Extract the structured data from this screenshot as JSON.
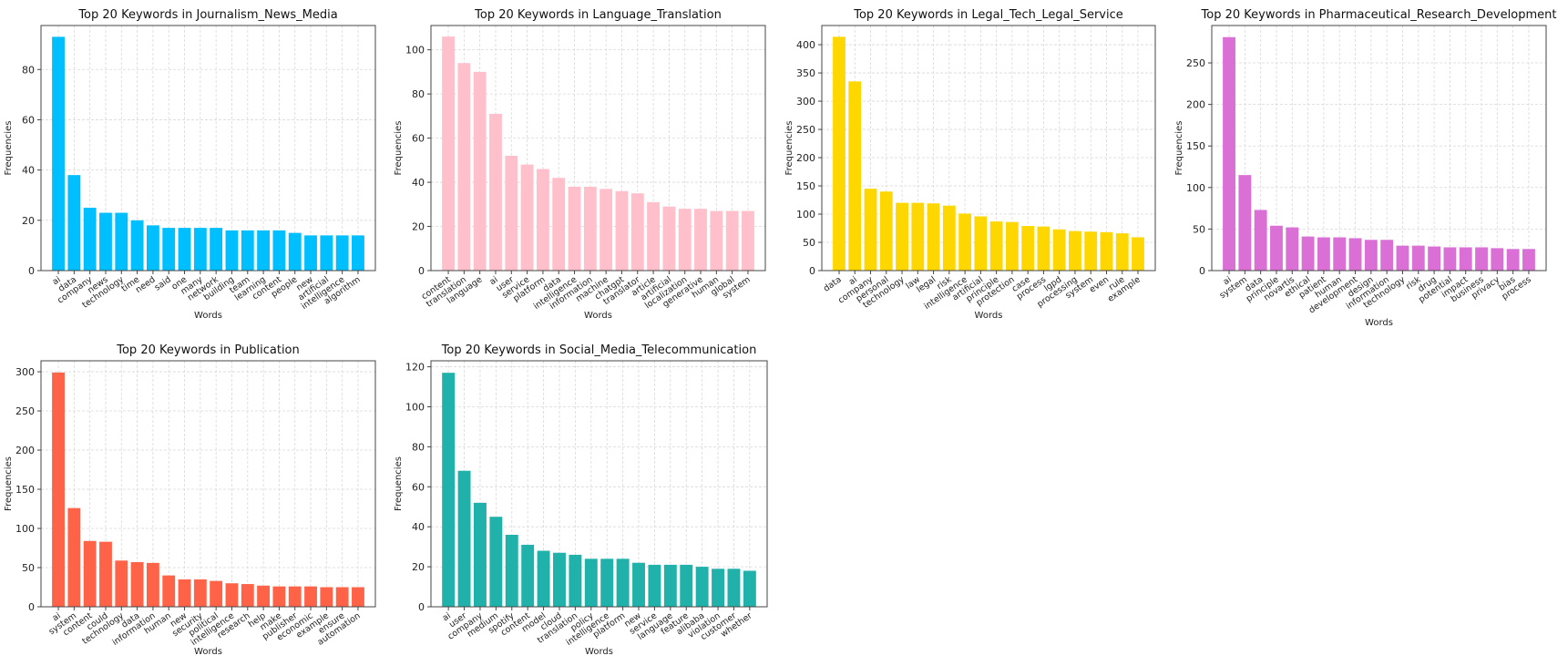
{
  "chart_data": [
    {
      "type": "bar",
      "title": "Top 20 Keywords in Journalism_News_Media",
      "xlabel": "Words",
      "ylabel": "Frequencies",
      "ylim": [
        0,
        97.5
      ],
      "yticks": [
        0,
        20,
        40,
        60,
        80
      ],
      "grid": true,
      "color": "#00bfff",
      "categories": [
        "ai",
        "data",
        "company",
        "news",
        "technology",
        "time",
        "need",
        "said",
        "one",
        "many",
        "network",
        "building",
        "team",
        "learning",
        "content",
        "people",
        "new",
        "artificial",
        "intelligence",
        "algorithm"
      ],
      "values": [
        93,
        38,
        25,
        23,
        23,
        20,
        18,
        17,
        17,
        17,
        17,
        16,
        16,
        16,
        16,
        15,
        14,
        14,
        14,
        14
      ]
    },
    {
      "type": "bar",
      "title": "Top 20 Keywords in Language_Translation",
      "xlabel": "Words",
      "ylabel": "Frequencies",
      "ylim": [
        0,
        111
      ],
      "yticks": [
        0,
        20,
        40,
        60,
        80,
        100
      ],
      "grid": true,
      "color": "#ffc0cb",
      "categories": [
        "content",
        "translation",
        "language",
        "ai",
        "user",
        "service",
        "platform",
        "data",
        "intelligence",
        "information",
        "machine",
        "chatgpt",
        "translator",
        "article",
        "artificial",
        "localization",
        "generative",
        "human",
        "global",
        "system"
      ],
      "values": [
        106,
        94,
        90,
        71,
        52,
        48,
        46,
        42,
        38,
        38,
        37,
        36,
        35,
        31,
        29,
        28,
        28,
        27,
        27,
        27
      ]
    },
    {
      "type": "bar",
      "title": "Top 20 Keywords in Legal_Tech_Legal_Service",
      "xlabel": "Words",
      "ylabel": "Frequencies",
      "ylim": [
        0,
        434
      ],
      "yticks": [
        0,
        50,
        100,
        150,
        200,
        250,
        300,
        350,
        400
      ],
      "grid": true,
      "color": "#ffd700",
      "categories": [
        "data",
        "ai",
        "company",
        "personal",
        "technology",
        "law",
        "legal",
        "risk",
        "intelligence",
        "artificial",
        "principle",
        "protection",
        "case",
        "process",
        "lgpd",
        "processing",
        "system",
        "even",
        "rule",
        "example"
      ],
      "values": [
        414,
        335,
        145,
        140,
        120,
        120,
        119,
        115,
        101,
        96,
        87,
        86,
        79,
        78,
        73,
        70,
        69,
        68,
        66,
        59
      ]
    },
    {
      "type": "bar",
      "title": "Top 20 Keywords in Pharmaceutical_Research_Development",
      "xlabel": "Words",
      "ylabel": "Frequencies",
      "ylim": [
        0,
        295
      ],
      "yticks": [
        0,
        50,
        100,
        150,
        200,
        250
      ],
      "grid": true,
      "color": "#da70d6",
      "categories": [
        "ai",
        "system",
        "data",
        "principle",
        "novartis",
        "ethical",
        "patient",
        "human",
        "development",
        "design",
        "information",
        "technology",
        "risk",
        "drug",
        "potential",
        "impact",
        "business",
        "privacy",
        "bias",
        "process"
      ],
      "values": [
        281,
        115,
        73,
        54,
        52,
        41,
        40,
        40,
        39,
        37,
        37,
        30,
        30,
        29,
        28,
        28,
        28,
        27,
        26,
        26
      ]
    },
    {
      "type": "bar",
      "title": "Top 20 Keywords in Publication",
      "xlabel": "Words",
      "ylabel": "Frequencies",
      "ylim": [
        0,
        314
      ],
      "yticks": [
        0,
        50,
        100,
        150,
        200,
        250,
        300
      ],
      "grid": true,
      "color": "#ff6347",
      "categories": [
        "ai",
        "system",
        "content",
        "could",
        "technology",
        "data",
        "information",
        "human",
        "new",
        "security",
        "political",
        "intelligence",
        "research",
        "help",
        "make",
        "publisher",
        "economic",
        "example",
        "ensure",
        "automation"
      ],
      "values": [
        299,
        126,
        84,
        83,
        59,
        57,
        56,
        40,
        35,
        35,
        33,
        30,
        29,
        27,
        26,
        26,
        26,
        25,
        25,
        25
      ]
    },
    {
      "type": "bar",
      "title": "Top 20 Keywords in Social_Media_Telecommunication",
      "xlabel": "Words",
      "ylabel": "Frequencies",
      "ylim": [
        0,
        123
      ],
      "yticks": [
        0,
        20,
        40,
        60,
        80,
        100,
        120
      ],
      "grid": true,
      "color": "#20b2aa",
      "categories": [
        "ai",
        "user",
        "company",
        "medium",
        "spotify",
        "content",
        "model",
        "cloud",
        "translation",
        "policy",
        "intelligence",
        "platform",
        "new",
        "service",
        "language",
        "feature",
        "alibaba",
        "violation",
        "customer",
        "whether"
      ],
      "values": [
        117,
        68,
        52,
        45,
        36,
        31,
        28,
        27,
        26,
        24,
        24,
        24,
        22,
        21,
        21,
        21,
        20,
        19,
        19,
        18
      ]
    }
  ]
}
